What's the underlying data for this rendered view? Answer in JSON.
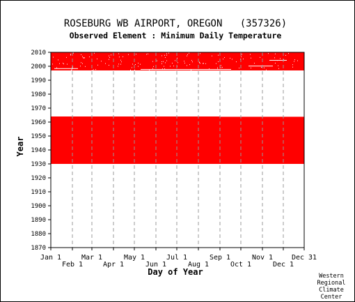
{
  "chart_data": {
    "type": "heatmap",
    "title": "ROSEBURG WB AIRPORT, OREGON   (357326)",
    "subtitle": "Observed Element : Minimum Daily Temperature",
    "xlabel": "Day of Year",
    "ylabel": "Year",
    "xlim": [
      1,
      365
    ],
    "ylim": [
      1870,
      2010
    ],
    "yticks": [
      1870,
      1880,
      1890,
      1900,
      1910,
      1920,
      1930,
      1940,
      1950,
      1960,
      1970,
      1980,
      1990,
      2000,
      2010
    ],
    "month_ticks_top": [
      {
        "label": "Jan 1",
        "day": 1
      },
      {
        "label": "Mar 1",
        "day": 60
      },
      {
        "label": "May 1",
        "day": 121
      },
      {
        "label": "Jul 1",
        "day": 182
      },
      {
        "label": "Sep 1",
        "day": 244
      },
      {
        "label": "Nov 1",
        "day": 305
      },
      {
        "label": "Dec 31",
        "day": 365
      }
    ],
    "month_ticks_bottom": [
      {
        "label": "Feb 1",
        "day": 32
      },
      {
        "label": "Apr 1",
        "day": 91
      },
      {
        "label": "Jun 1",
        "day": 152
      },
      {
        "label": "Aug 1",
        "day": 213
      },
      {
        "label": "Oct 1",
        "day": 274
      },
      {
        "label": "Dec 1",
        "day": 335
      }
    ],
    "grid_days": [
      32,
      60,
      91,
      121,
      152,
      182,
      213,
      244,
      274,
      305,
      335
    ],
    "data_periods": [
      {
        "start_year": 1930.0,
        "end_year": 1964.0,
        "start_day": 1,
        "end_day": 244,
        "completeness": "complete"
      },
      {
        "start_year": 1930.0,
        "end_year": 1963.8,
        "start_day": 244,
        "end_day": 365,
        "completeness": "complete"
      },
      {
        "start_year": 1997.0,
        "end_year": 2010.0,
        "start_day": 1,
        "end_day": 365,
        "completeness": "mostly complete, scattered missing days"
      }
    ],
    "colors": {
      "data": "#ff0000",
      "background": "#ffffff",
      "grid": "#999999",
      "axis": "#000000"
    }
  },
  "credit": [
    "Western",
    "Regional",
    "Climate",
    "Center"
  ]
}
